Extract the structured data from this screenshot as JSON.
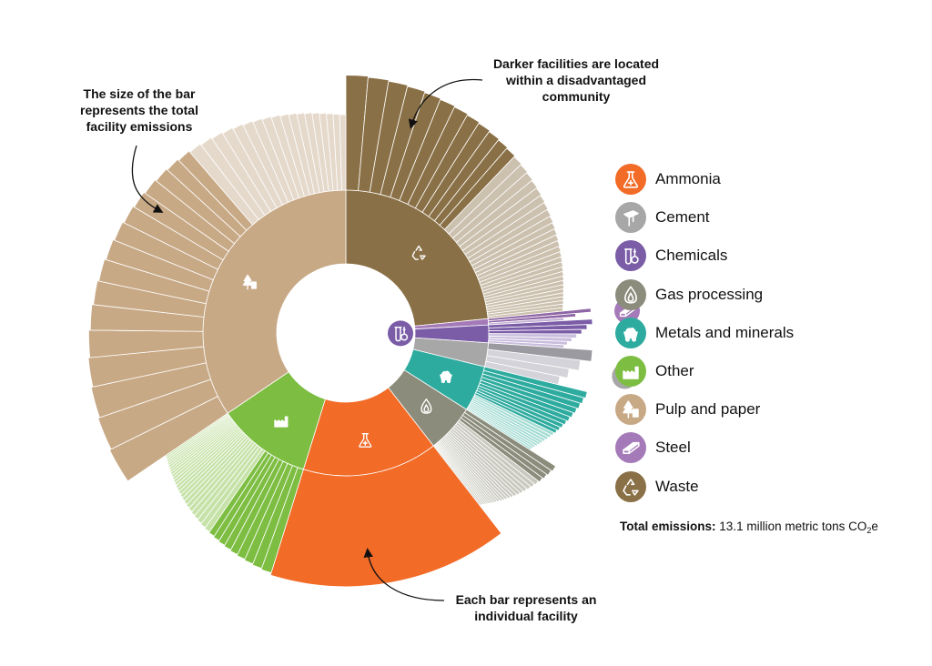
{
  "annotations": {
    "bar_size": "The size of the bar represents the total facility emissions",
    "darker": "Darker facilities are located within a disadvantaged community",
    "each_bar": "Each bar represents an individual facility"
  },
  "legend": [
    {
      "label": "Ammonia",
      "color": "#F26B27",
      "icon": "flask-icon"
    },
    {
      "label": "Cement",
      "color": "#A7A7A7",
      "icon": "cement-icon"
    },
    {
      "label": "Chemicals",
      "color": "#7A5CA7",
      "icon": "chemicals-icon"
    },
    {
      "label": "Gas processing",
      "color": "#8C8C7C",
      "icon": "flame-icon"
    },
    {
      "label": "Metals and minerals",
      "color": "#2EAB9F",
      "icon": "mine-cart-icon"
    },
    {
      "label": "Other",
      "color": "#7DBE42",
      "icon": "factory-icon"
    },
    {
      "label": "Pulp and paper",
      "color": "#C8A986",
      "icon": "tree-icon"
    },
    {
      "label": "Steel",
      "color": "#A57AB8",
      "icon": "steel-beam-icon"
    },
    {
      "label": "Waste",
      "color": "#8A7046",
      "icon": "recycle-icon"
    }
  ],
  "total": {
    "label": "Total emissions:",
    "value": "13.1 million metric tons CO",
    "sub": "2",
    "suffix": "e"
  },
  "chart_data": {
    "type": "sunburst",
    "total_mt_co2e": 13.1,
    "sectors": [
      {
        "name": "Waste",
        "share": 0.234,
        "color": "#8A7046",
        "dac_color": "#8A7046",
        "non_dac_color": "#CCC0AE",
        "icon": "recycle-icon",
        "dac_count": 12,
        "non_dac_count": 28
      },
      {
        "name": "Steel",
        "share": 0.007,
        "color": "#A57AB8",
        "dac_color": "#8E65A5",
        "non_dac_color": "#C7B2D6",
        "icon": "steel-beam-icon",
        "dac_count": 2,
        "non_dac_count": 1
      },
      {
        "name": "Chemicals",
        "share": 0.02,
        "color": "#7A5CA7",
        "dac_color": "#7A5CA7",
        "non_dac_color": "#C9BEDD",
        "icon": "chemicals-icon",
        "dac_count": 3,
        "non_dac_count": 4
      },
      {
        "name": "Cement",
        "share": 0.027,
        "color": "#A7A7A7",
        "dac_color": "#9A9AA0",
        "non_dac_color": "#D3D3D9",
        "icon": "cement-icon",
        "dac_count": 1,
        "non_dac_count": 3
      },
      {
        "name": "Metals and minerals",
        "share": 0.052,
        "color": "#2EAB9F",
        "dac_color": "#2EAB9F",
        "non_dac_color": "#A4DCD3",
        "icon": "mine-cart-icon",
        "dac_count": 10,
        "non_dac_count": 10
      },
      {
        "name": "Gas processing",
        "share": 0.055,
        "color": "#8C8C7C",
        "dac_color": "#8C8C7C",
        "non_dac_color": "#C9C9BF",
        "icon": "flame-icon",
        "dac_count": 4,
        "non_dac_count": 22
      },
      {
        "name": "Ammonia",
        "share": 0.153,
        "color": "#F26B27",
        "dac_color": "#F26B27",
        "non_dac_color": "#F9B794",
        "icon": "flask-icon",
        "dac_count": 1,
        "non_dac_count": 0
      },
      {
        "name": "Other",
        "share": 0.107,
        "color": "#7DBE42",
        "dac_color": "#7DBE42",
        "non_dac_color": "#C6E2A8",
        "icon": "factory-icon",
        "dac_count": 9,
        "non_dac_count": 26
      },
      {
        "name": "Pulp and paper",
        "share": 0.345,
        "color": "#C8A986",
        "dac_color": "#C8A986",
        "non_dac_color": "#E5D9CB",
        "icon": "tree-icon",
        "dac_count": 16,
        "non_dac_count": 18
      }
    ]
  }
}
